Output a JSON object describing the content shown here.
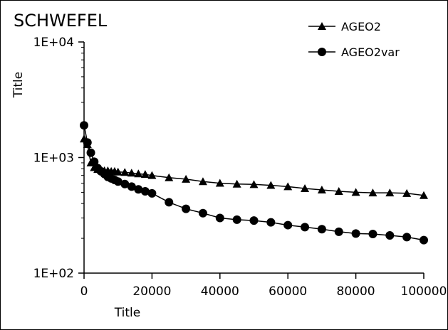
{
  "chart_data": {
    "type": "line",
    "title": "SCHWEFEL",
    "xlabel": "Title",
    "ylabel": "Title",
    "xscale": "linear",
    "yscale": "log",
    "xlim": [
      0,
      100000
    ],
    "ylim": [
      100,
      10000
    ],
    "xticks": [
      "0",
      "20000",
      "40000",
      "60000",
      "80000",
      "100000"
    ],
    "yticks": [
      "1E+02",
      "1E+03",
      "1E+04"
    ],
    "grid": false,
    "legend_position": "top-right",
    "series": [
      {
        "name": "AGEO2",
        "marker": "triangle",
        "color": "#000000",
        "points": [
          [
            0,
            1450
          ],
          [
            1000,
            1300
          ],
          [
            2000,
            900
          ],
          [
            3000,
            820
          ],
          [
            4000,
            790
          ],
          [
            5000,
            780
          ],
          [
            6000,
            770
          ],
          [
            7000,
            770
          ],
          [
            8000,
            760
          ],
          [
            9000,
            760
          ],
          [
            10000,
            750
          ],
          [
            12000,
            745
          ],
          [
            14000,
            735
          ],
          [
            16000,
            725
          ],
          [
            18000,
            715
          ],
          [
            20000,
            700
          ],
          [
            25000,
            670
          ],
          [
            30000,
            650
          ],
          [
            35000,
            620
          ],
          [
            40000,
            600
          ],
          [
            45000,
            590
          ],
          [
            50000,
            585
          ],
          [
            55000,
            575
          ],
          [
            60000,
            560
          ],
          [
            65000,
            540
          ],
          [
            70000,
            525
          ],
          [
            75000,
            510
          ],
          [
            80000,
            500
          ],
          [
            85000,
            495
          ],
          [
            90000,
            495
          ],
          [
            95000,
            490
          ],
          [
            100000,
            470
          ]
        ]
      },
      {
        "name": "AGEO2var",
        "marker": "circle",
        "color": "#000000",
        "points": [
          [
            0,
            1900
          ],
          [
            1000,
            1350
          ],
          [
            2000,
            1100
          ],
          [
            3000,
            920
          ],
          [
            4000,
            810
          ],
          [
            5000,
            760
          ],
          [
            6000,
            720
          ],
          [
            7000,
            680
          ],
          [
            8000,
            660
          ],
          [
            9000,
            640
          ],
          [
            10000,
            620
          ],
          [
            12000,
            590
          ],
          [
            14000,
            560
          ],
          [
            16000,
            530
          ],
          [
            18000,
            510
          ],
          [
            20000,
            490
          ],
          [
            25000,
            410
          ],
          [
            30000,
            360
          ],
          [
            35000,
            330
          ],
          [
            40000,
            300
          ],
          [
            45000,
            290
          ],
          [
            50000,
            285
          ],
          [
            55000,
            275
          ],
          [
            60000,
            260
          ],
          [
            65000,
            250
          ],
          [
            70000,
            240
          ],
          [
            75000,
            228
          ],
          [
            80000,
            220
          ],
          [
            85000,
            218
          ],
          [
            90000,
            212
          ],
          [
            95000,
            205
          ],
          [
            100000,
            193
          ]
        ]
      }
    ]
  }
}
